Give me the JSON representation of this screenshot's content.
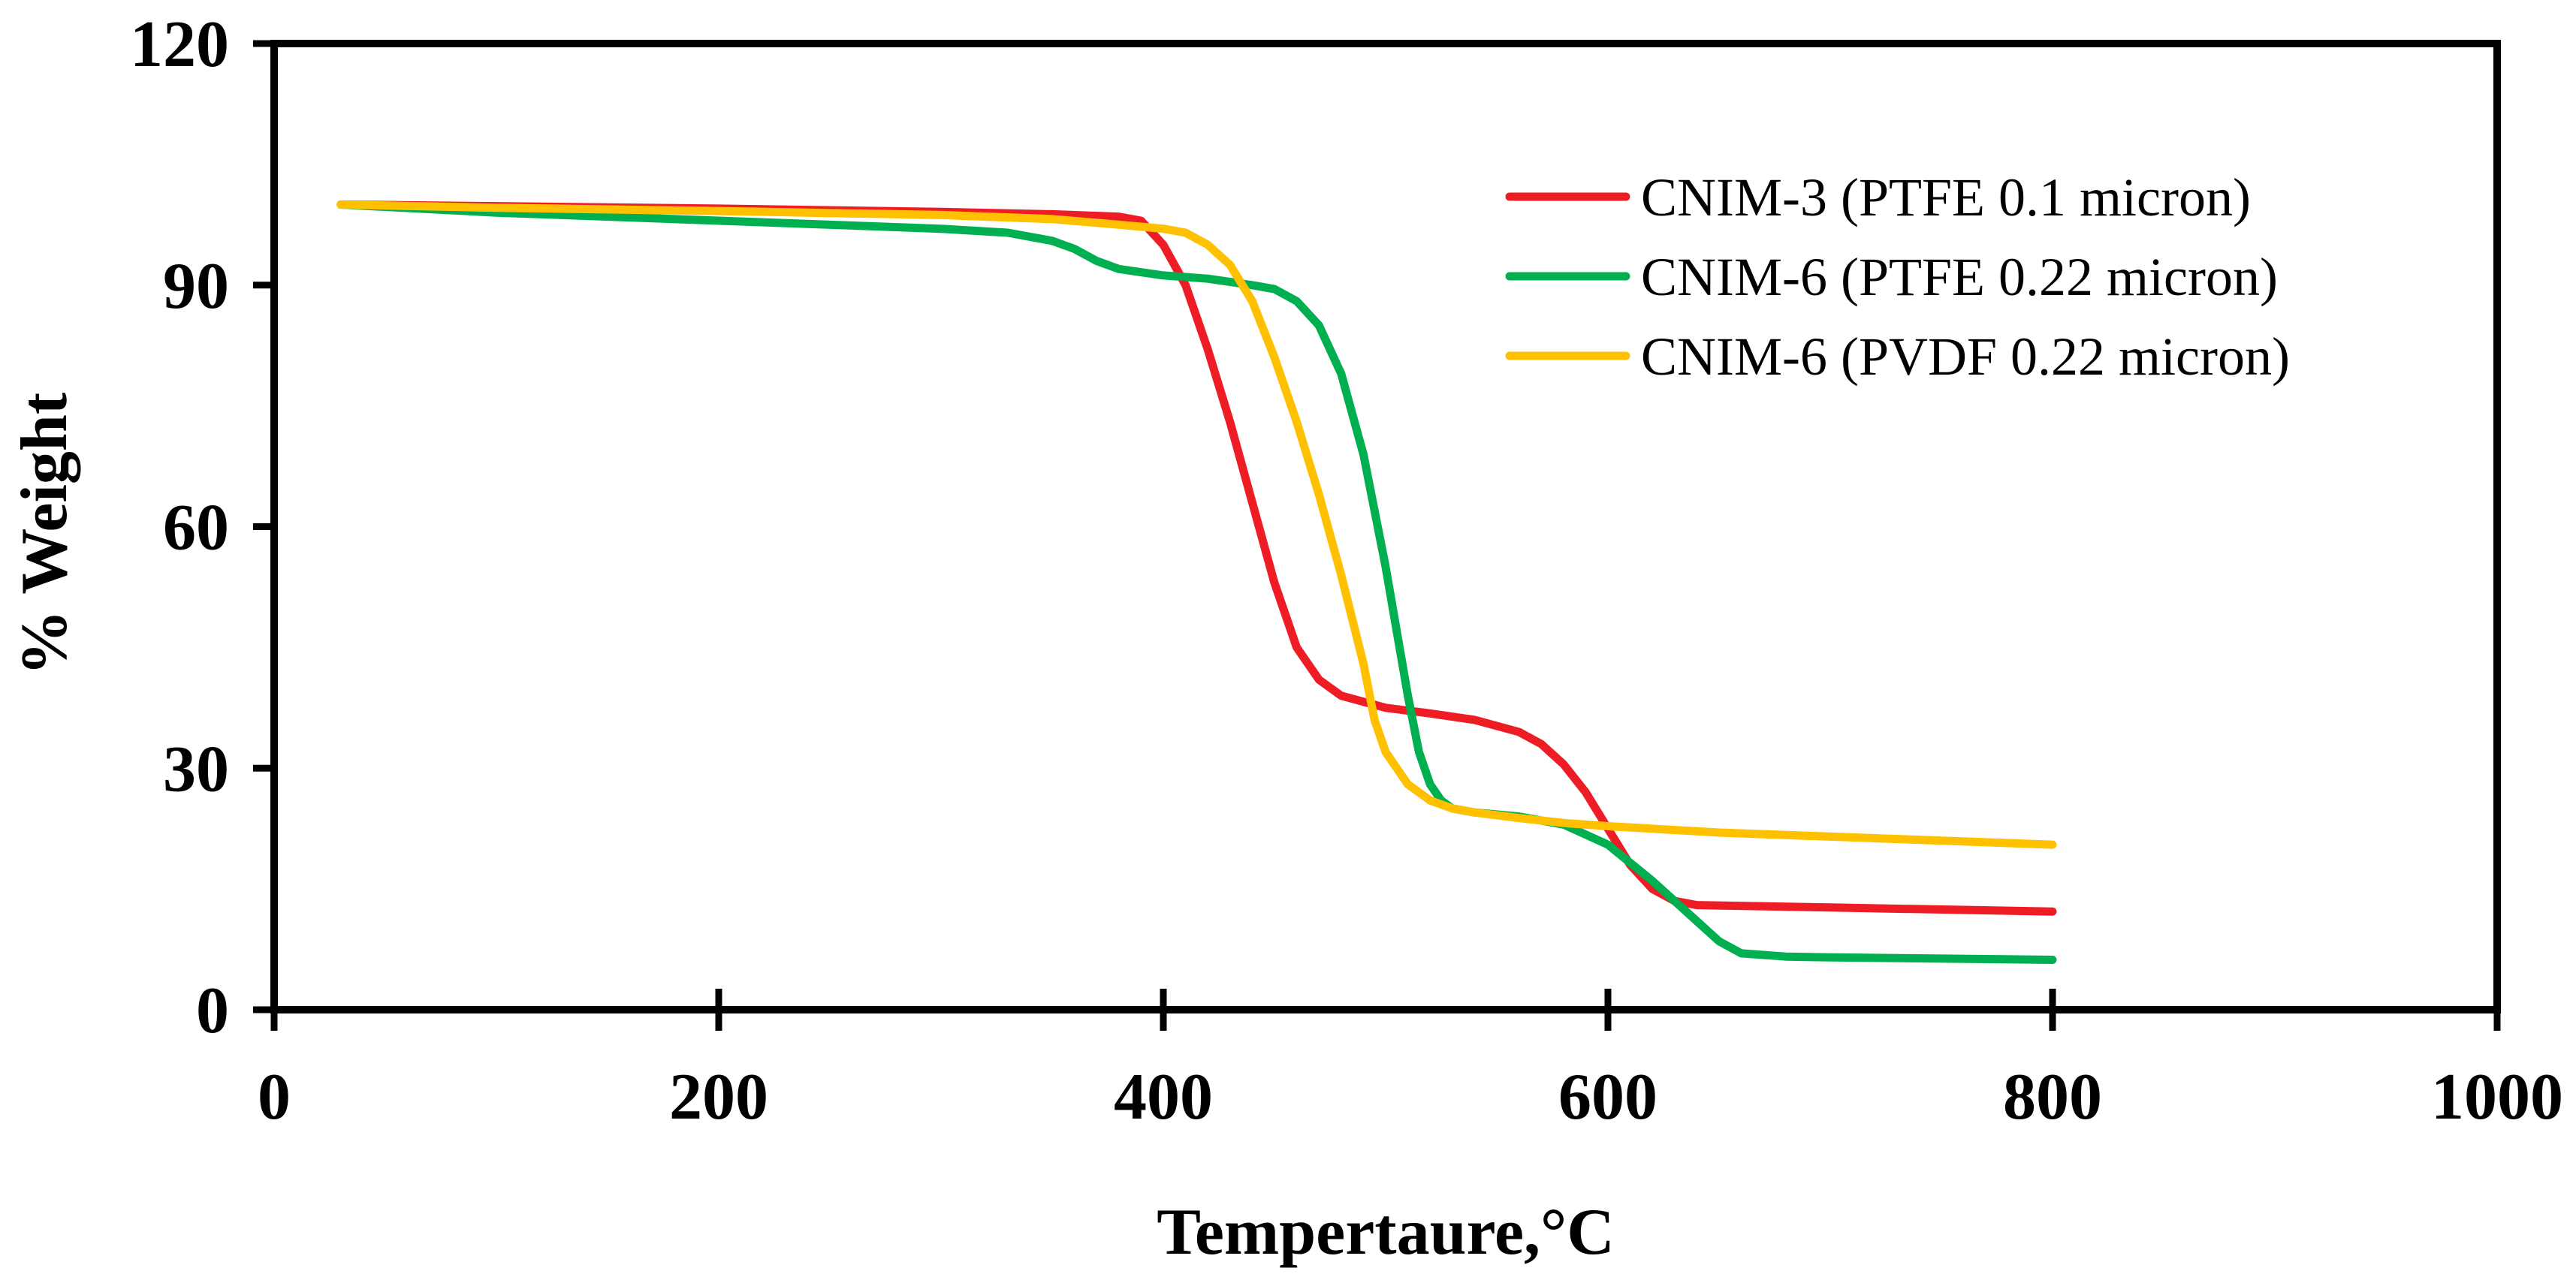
{
  "chart_data": {
    "type": "line",
    "title": "",
    "xlabel": "Tempertaure,°C",
    "ylabel": "% Weight",
    "xlim": [
      0,
      1000
    ],
    "ylim": [
      0,
      120
    ],
    "x_ticks": [
      0,
      200,
      400,
      600,
      800,
      1000
    ],
    "y_ticks": [
      0,
      30,
      60,
      90,
      120
    ],
    "grid": false,
    "legend_position": "top-right",
    "series": [
      {
        "name": "CNIM-3 (PTFE 0.1 micron)",
        "color": "#ee1c25",
        "x": [
          30,
          100,
          200,
          300,
          350,
          380,
          390,
          400,
          410,
          420,
          430,
          440,
          450,
          460,
          470,
          480,
          500,
          520,
          540,
          560,
          570,
          580,
          590,
          600,
          610,
          620,
          630,
          640,
          700,
          800
        ],
        "y": [
          100,
          99.8,
          99.5,
          99.1,
          98.8,
          98.5,
          98,
          95,
          90,
          82,
          73,
          63,
          53,
          45,
          41,
          39,
          37.5,
          36.8,
          36,
          34.5,
          33,
          30.5,
          27,
          22.5,
          18,
          15,
          13.5,
          13,
          12.7,
          12.2
        ]
      },
      {
        "name": "CNIM-6 (PTFE 0.22 micron)",
        "color": "#00b050",
        "x": [
          30,
          100,
          200,
          300,
          330,
          350,
          360,
          370,
          380,
          400,
          420,
          440,
          450,
          460,
          470,
          480,
          490,
          500,
          505,
          510,
          515,
          520,
          525,
          530,
          540,
          560,
          580,
          600,
          620,
          640,
          650,
          660,
          680,
          700,
          800
        ],
        "y": [
          100,
          99,
          98,
          97,
          96.5,
          95.5,
          94.5,
          93,
          92,
          91.2,
          90.8,
          90,
          89.5,
          88,
          85,
          79,
          69,
          55,
          47,
          39,
          32,
          28,
          26,
          25,
          24.5,
          24,
          23,
          20.5,
          16,
          11,
          8.5,
          7,
          6.6,
          6.5,
          6.2
        ]
      },
      {
        "name": "CNIM-6 (PVDF 0.22 micron)",
        "color": "#ffc000",
        "x": [
          30,
          100,
          200,
          300,
          350,
          380,
          400,
          410,
          420,
          430,
          440,
          450,
          460,
          470,
          480,
          490,
          495,
          500,
          510,
          520,
          530,
          540,
          560,
          580,
          600,
          650,
          700,
          800
        ],
        "y": [
          100,
          99.6,
          99.2,
          98.7,
          98.2,
          97.5,
          97,
          96.5,
          95,
          92.5,
          88,
          81,
          73,
          64,
          54,
          43,
          36,
          32,
          28,
          26,
          25,
          24.5,
          23.8,
          23.2,
          22.8,
          22,
          21.5,
          20.5
        ]
      }
    ]
  }
}
